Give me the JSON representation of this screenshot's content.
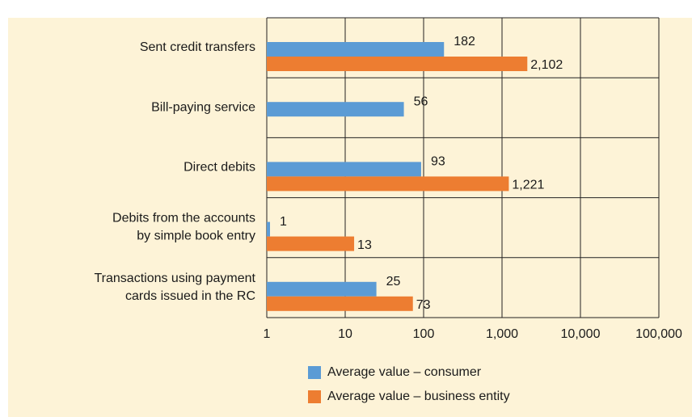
{
  "chart_data": {
    "type": "bar",
    "orientation": "horizontal",
    "xscale": "log",
    "categories": [
      "Sent credit transfers",
      "Bill-paying service",
      "Direct debits",
      "Debits from the accounts\nby simple book entry",
      "Transactions using payment\ncards issued in the RC"
    ],
    "series": [
      {
        "name": "Average value – consumer",
        "color": "#5b9bd5",
        "values": [
          182,
          56,
          93,
          1,
          25
        ]
      },
      {
        "name": "Average value – business entity",
        "color": "#ed7d31",
        "values": [
          2102,
          null,
          1221,
          13,
          73
        ],
        "value_labels": [
          "2,102",
          null,
          "1,221",
          "13",
          "73"
        ]
      }
    ],
    "xlim": [
      1,
      100000
    ],
    "xticks": [
      1,
      10,
      100,
      {
        "value": 1000,
        "label": "1,000"
      },
      {
        "value": 10000,
        "label": "10,000"
      },
      {
        "value": 100000,
        "label": "100,000"
      }
    ],
    "grid": true,
    "legend": "bottom"
  }
}
